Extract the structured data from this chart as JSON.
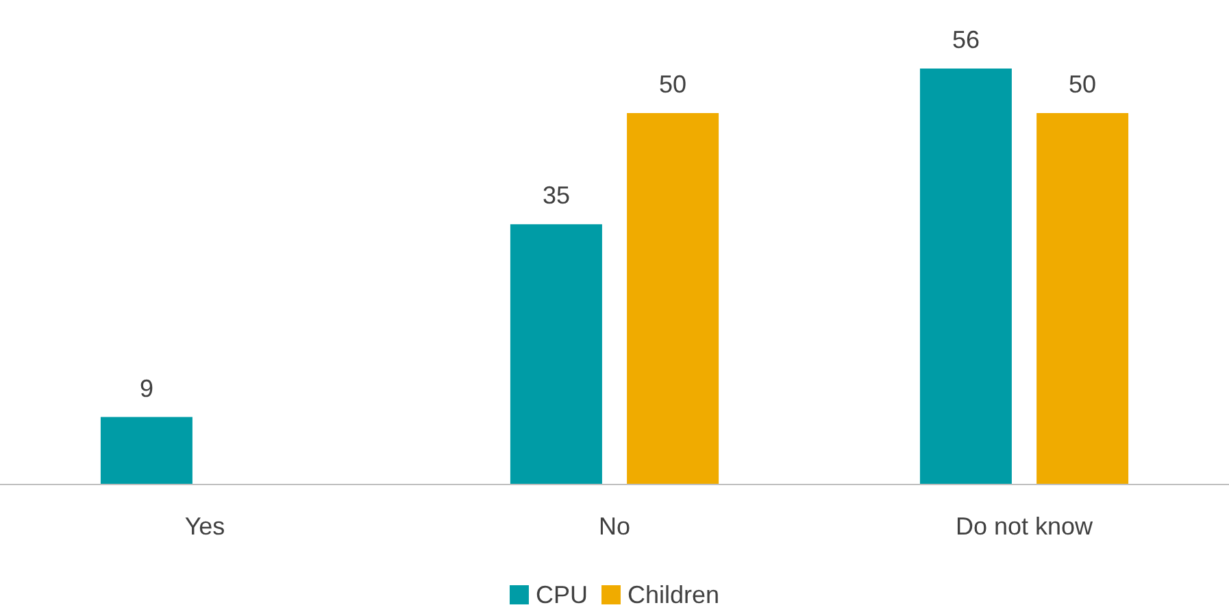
{
  "chart_data": {
    "type": "bar",
    "categories": [
      "Yes",
      "No",
      "Do not know"
    ],
    "series": [
      {
        "name": "CPU",
        "color": "#009ca6",
        "values": [
          9,
          35,
          56
        ]
      },
      {
        "name": "Children",
        "color": "#f0ab00",
        "values": [
          null,
          50,
          50
        ]
      }
    ],
    "data_labels": true,
    "legend": "bottom"
  }
}
